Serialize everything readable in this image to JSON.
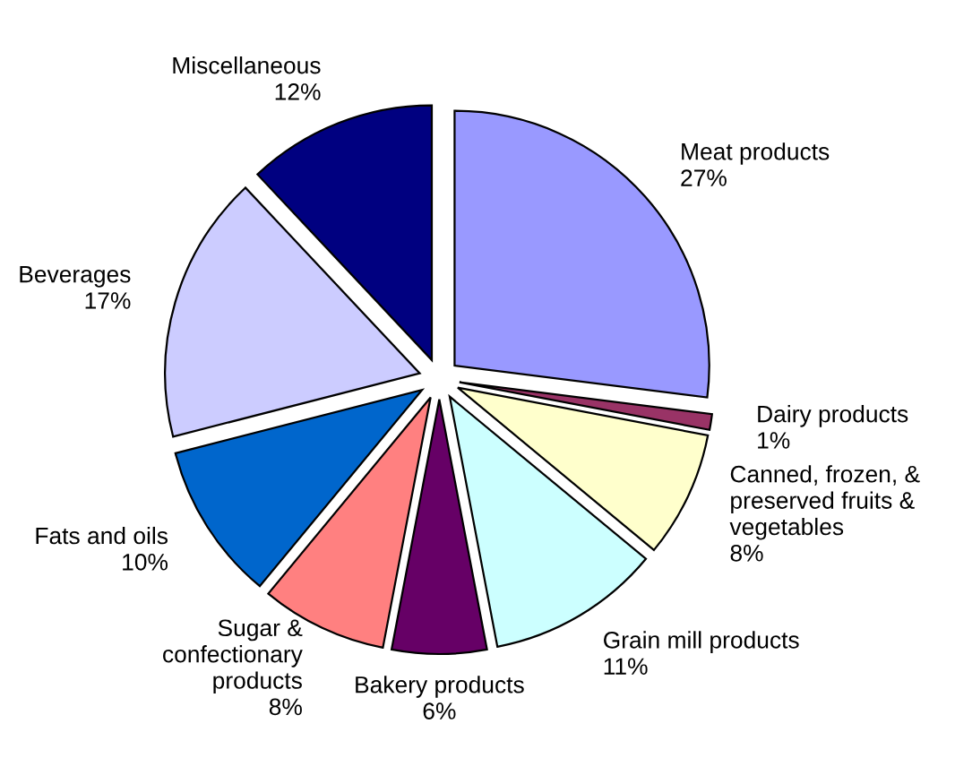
{
  "chart_data": {
    "type": "pie",
    "categories": [
      "Meat products",
      "Dairy products",
      "Canned, frozen, & preserved fruits & vegetables",
      "Grain mill products",
      "Bakery products",
      "Sugar & confectionary products",
      "Fats and oils",
      "Beverages",
      "Miscellaneous"
    ],
    "values": [
      27,
      1,
      8,
      11,
      6,
      8,
      10,
      17,
      12
    ],
    "value_labels": [
      "27%",
      "1%",
      "8%",
      "11%",
      "6%",
      "8%",
      "10%",
      "17%",
      "12%"
    ],
    "colors": [
      "#9999ff",
      "#993366",
      "#ffffcc",
      "#ccffff",
      "#660066",
      "#ff8080",
      "#0066cc",
      "#ccccff",
      "#000080"
    ],
    "legend": false
  }
}
